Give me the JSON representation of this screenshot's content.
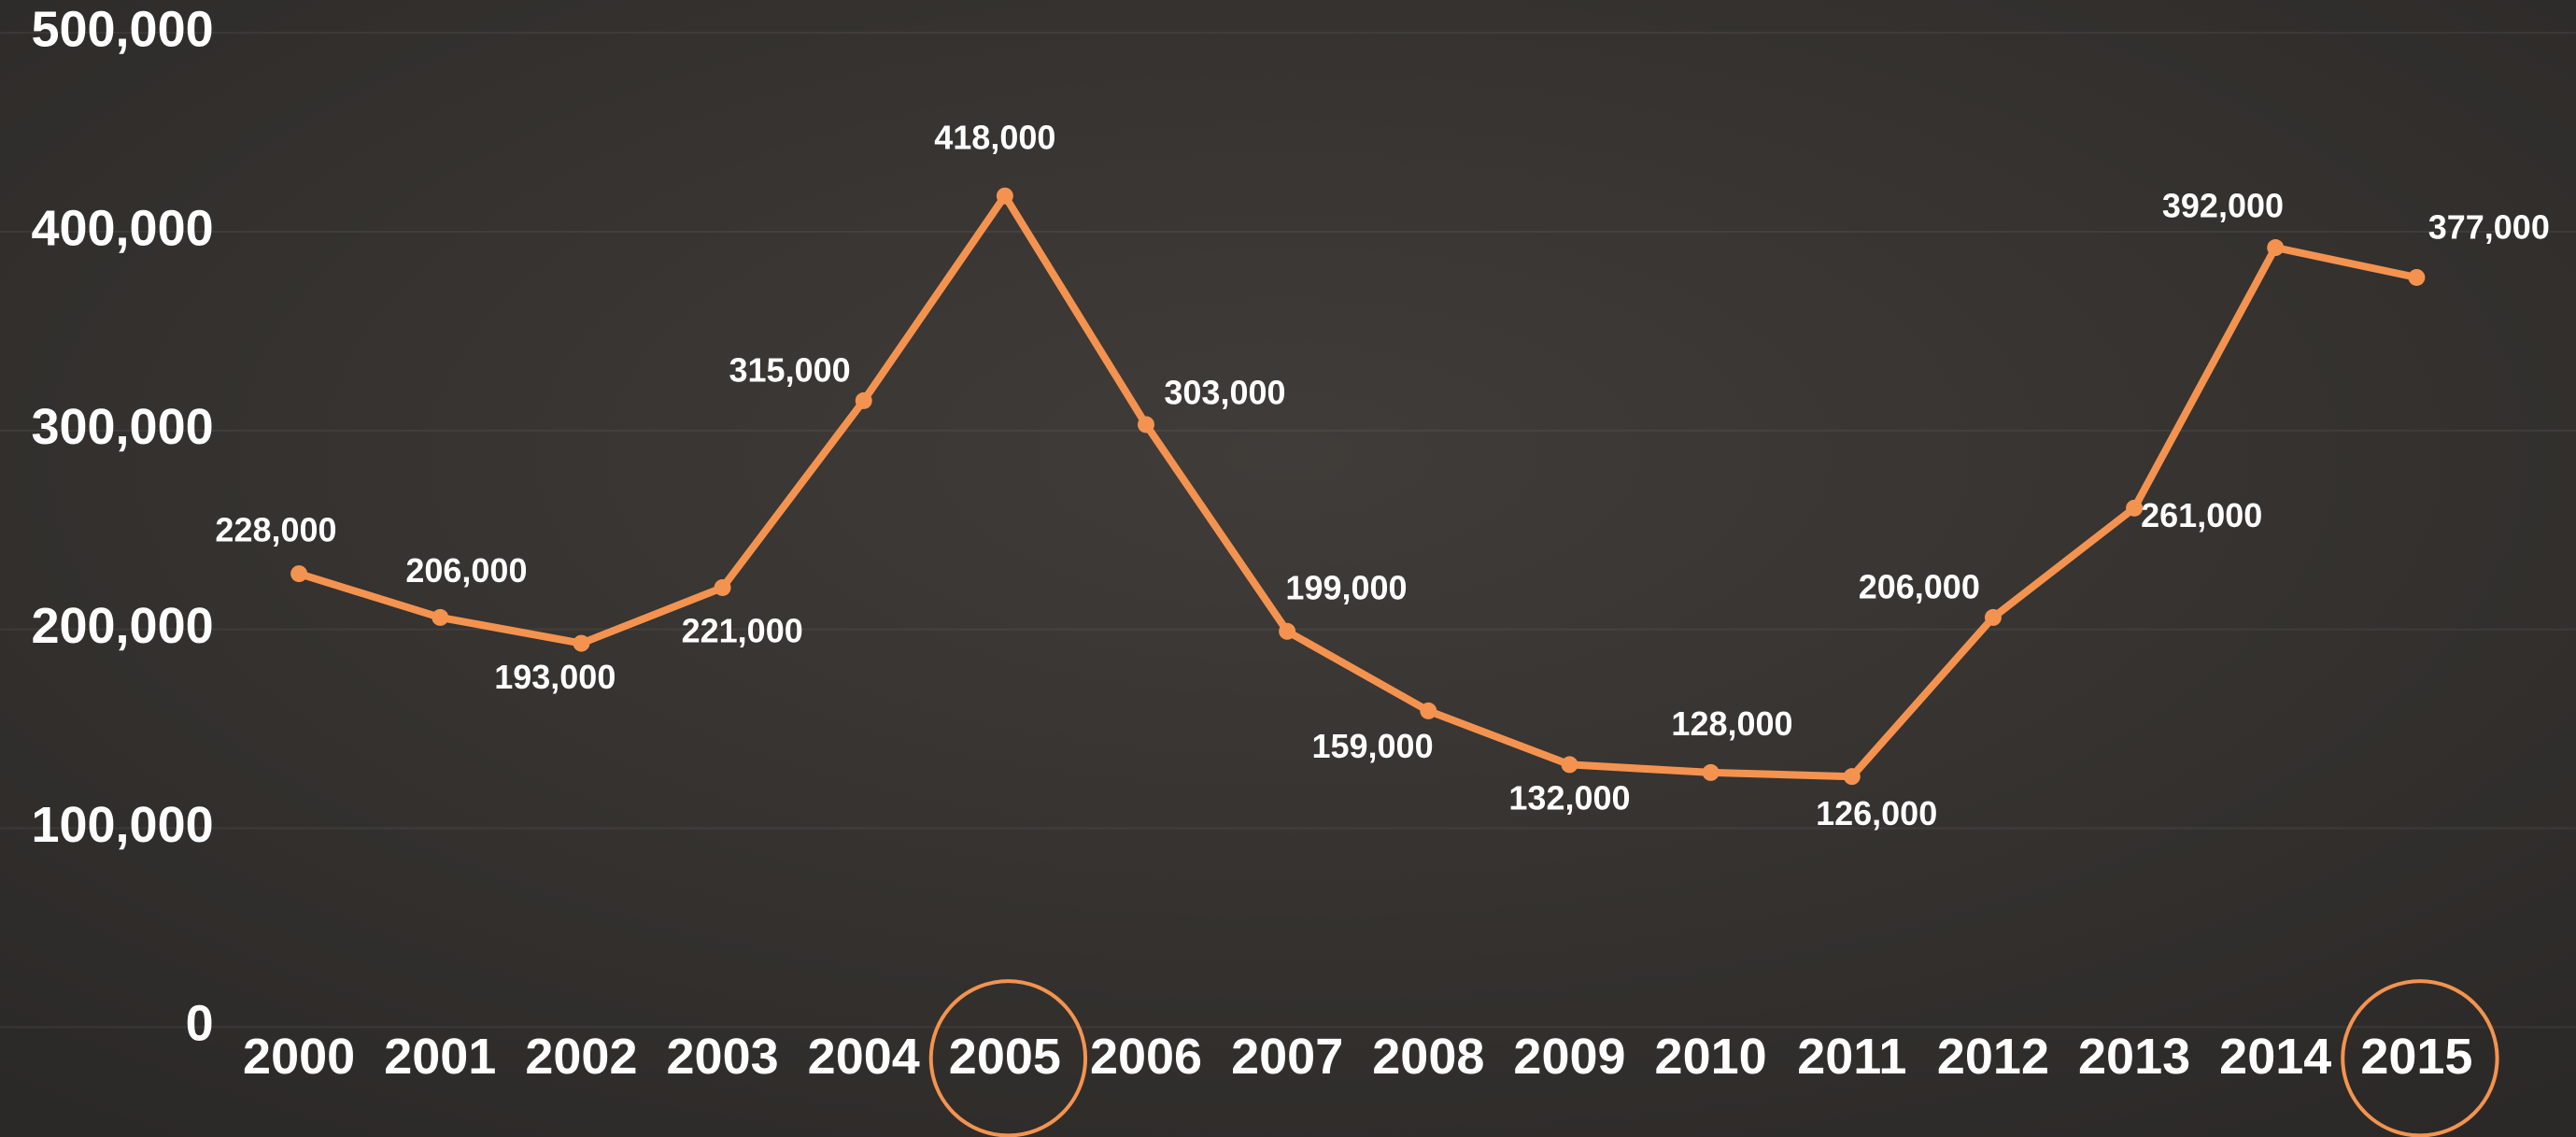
{
  "chart_data": {
    "type": "line",
    "categories": [
      "2000",
      "2001",
      "2002",
      "2003",
      "2004",
      "2005",
      "2006",
      "2007",
      "2008",
      "2009",
      "2010",
      "2011",
      "2012",
      "2013",
      "2014",
      "2015"
    ],
    "values": [
      228000,
      206000,
      193000,
      221000,
      315000,
      418000,
      303000,
      199000,
      159000,
      132000,
      128000,
      126000,
      206000,
      261000,
      392000,
      377000
    ],
    "value_labels": [
      "228,000",
      "206,000",
      "193,000",
      "221,000",
      "315,000",
      "418,000",
      "303,000",
      "199,000",
      "159,000",
      "132,000",
      "128,000",
      "126,000",
      "206,000",
      "261,000",
      "392,000",
      "377,000"
    ],
    "color": "#f4934f",
    "ylim": [
      0,
      500000
    ],
    "yticks": [
      0,
      {
        "value": 100000,
        "label": "100,000"
      },
      {
        "value": 200000,
        "label": "200,000"
      },
      {
        "value": 300000,
        "label": "300,000"
      },
      {
        "value": 400000,
        "label": "400,000"
      },
      {
        "value": 500000,
        "label": "500,000"
      }
    ],
    "grid": true,
    "highlight": [
      5,
      15
    ]
  }
}
